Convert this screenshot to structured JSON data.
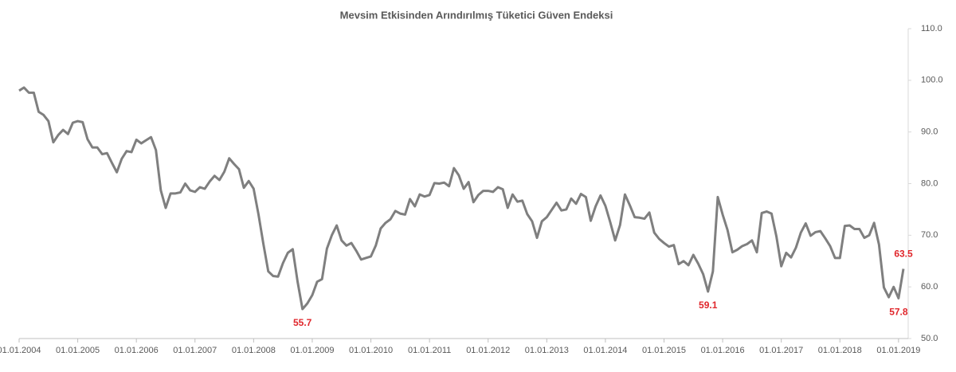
{
  "chart_data": {
    "type": "line",
    "title": "Mevsim Etkisinden Arındırılmış Tüketici Güven Endeksi",
    "categories": [
      "01.01.2004",
      null,
      null,
      null,
      null,
      null,
      null,
      null,
      null,
      null,
      null,
      null,
      "01.01.2005",
      null,
      null,
      null,
      null,
      null,
      null,
      null,
      null,
      null,
      null,
      null,
      "01.01.2006",
      null,
      null,
      null,
      null,
      null,
      null,
      null,
      null,
      null,
      null,
      null,
      "01.01.2007",
      null,
      null,
      null,
      null,
      null,
      null,
      null,
      null,
      null,
      null,
      null,
      "01.01.2008",
      null,
      null,
      null,
      null,
      null,
      null,
      null,
      null,
      null,
      null,
      null,
      "01.01.2009",
      null,
      null,
      null,
      null,
      null,
      null,
      null,
      null,
      null,
      null,
      null,
      "01.01.2010",
      null,
      null,
      null,
      null,
      null,
      null,
      null,
      null,
      null,
      null,
      null,
      "01.01.2011",
      null,
      null,
      null,
      null,
      null,
      null,
      null,
      null,
      null,
      null,
      null,
      "01.01.2012",
      null,
      null,
      null,
      null,
      null,
      null,
      null,
      null,
      null,
      null,
      null,
      "01.01.2013",
      null,
      null,
      null,
      null,
      null,
      null,
      null,
      null,
      null,
      null,
      null,
      "01.01.2014",
      null,
      null,
      null,
      null,
      null,
      null,
      null,
      null,
      null,
      null,
      null,
      "01.01.2015",
      null,
      null,
      null,
      null,
      null,
      null,
      null,
      null,
      null,
      null,
      null,
      "01.01.2016",
      null,
      null,
      null,
      null,
      null,
      null,
      null,
      null,
      null,
      null,
      null,
      "01.01.2017",
      null,
      null,
      null,
      null,
      null,
      null,
      null,
      null,
      null,
      null,
      null,
      "01.01.2018",
      null,
      null,
      null,
      null,
      null,
      null,
      null,
      null,
      null,
      null,
      null,
      "01.01.2019",
      null
    ],
    "series": [
      {
        "color": "#7f7f7f",
        "values": [
          98.0,
          98.6,
          97.6,
          97.6,
          93.9,
          93.3,
          92.1,
          88.0,
          89.4,
          90.4,
          89.6,
          91.8,
          92.1,
          91.9,
          88.6,
          87.0,
          87.0,
          85.7,
          85.9,
          84.0,
          82.2,
          84.8,
          86.3,
          86.1,
          88.5,
          87.8,
          88.4,
          89.0,
          86.5,
          78.7,
          75.3,
          78.1,
          78.1,
          78.3,
          80.0,
          78.7,
          78.4,
          79.3,
          79.0,
          80.4,
          81.5,
          80.7,
          82.3,
          84.9,
          83.8,
          82.8,
          79.2,
          80.5,
          79.0,
          74.0,
          68.3,
          63.0,
          62.1,
          62.0,
          64.6,
          66.6,
          67.3,
          61.0,
          55.7,
          56.8,
          58.4,
          61.0,
          61.5,
          67.4,
          70.0,
          71.9,
          69.0,
          68.0,
          68.5,
          67.0,
          65.3,
          65.6,
          65.9,
          68.0,
          71.3,
          72.4,
          73.1,
          74.7,
          74.2,
          74.0,
          77.0,
          75.6,
          77.9,
          77.5,
          77.8,
          80.1,
          80.0,
          80.2,
          79.5,
          83.0,
          81.6,
          79.0,
          80.3,
          76.4,
          77.8,
          78.6,
          78.6,
          78.4,
          79.3,
          78.9,
          75.3,
          77.9,
          76.5,
          76.7,
          74.1,
          72.7,
          69.5,
          72.7,
          73.5,
          74.9,
          76.3,
          74.8,
          75.0,
          77.1,
          76.1,
          78.0,
          77.4,
          72.8,
          75.6,
          77.7,
          75.7,
          72.5,
          69.0,
          72.0,
          77.9,
          75.8,
          73.5,
          73.4,
          73.2,
          74.4,
          70.5,
          69.3,
          68.5,
          67.8,
          68.1,
          64.4,
          65.0,
          64.2,
          66.2,
          64.5,
          62.5,
          59.1,
          63.0,
          77.4,
          74.0,
          71.0,
          66.7,
          67.2,
          67.9,
          68.3,
          69.0,
          66.7,
          74.3,
          74.6,
          74.2,
          69.8,
          64.0,
          66.6,
          65.7,
          67.6,
          70.5,
          72.3,
          69.9,
          70.6,
          70.8,
          69.4,
          67.9,
          65.6,
          65.6,
          71.8,
          71.9,
          71.2,
          71.2,
          69.5,
          70.0,
          72.4,
          68.2,
          59.9,
          58.0,
          60.0,
          57.8,
          63.5
        ]
      }
    ],
    "ylim": [
      50,
      110
    ],
    "yticks": [
      {
        "value": 50,
        "label": "50.0"
      },
      {
        "value": 60,
        "label": "60.0"
      },
      {
        "value": 70,
        "label": "70.0"
      },
      {
        "value": 80,
        "label": "80.0"
      },
      {
        "value": 90,
        "label": "90.0"
      },
      {
        "value": 100,
        "label": "100.0"
      },
      {
        "value": 110,
        "label": "110.0"
      }
    ],
    "value_label_color": "#e0262b"
  }
}
